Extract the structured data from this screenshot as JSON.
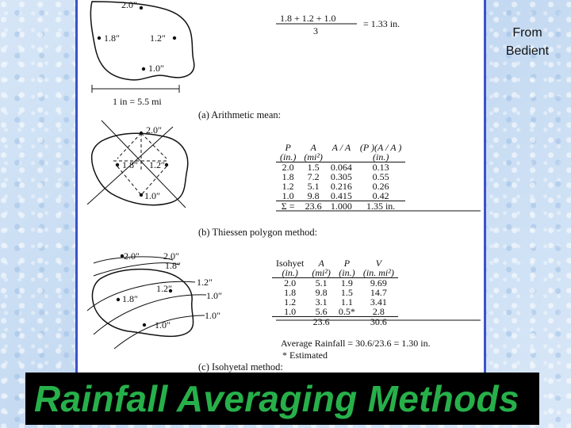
{
  "credit": [
    "From",
    "Bedient"
  ],
  "banner_title": "Rainfall Averaging Methods",
  "figure": {
    "arithmetic": {
      "gauges": [
        "2.0″",
        "1.8″",
        "1.2″",
        "1.0″"
      ],
      "formula_numerator": "1.8 + 1.2 + 1.0",
      "formula_denominator": "3",
      "formula_result": "= 1.33 in.",
      "scale": "1 in = 5.5 mi",
      "caption": "(a) Arithmetic mean:"
    },
    "thiessen": {
      "gauges": [
        "2.0″",
        "1.8″",
        "1.2″",
        "1.0″"
      ],
      "caption": "(b) Thiessen polygon method:",
      "header": [
        "P",
        "A",
        "A / A",
        "(P )(A / A )"
      ],
      "units": [
        "(in.)",
        "(mi²)",
        "",
        "(in.)"
      ],
      "rows": [
        [
          "2.0",
          "1.5",
          "0.064",
          "0.13"
        ],
        [
          "1.8",
          "7.2",
          "0.305",
          "0.55"
        ],
        [
          "1.2",
          "5.1",
          "0.216",
          "0.26"
        ],
        [
          "1.0",
          "9.8",
          "0.415",
          "0.42"
        ]
      ],
      "total": [
        "Σ =",
        "23.6",
        "1.000",
        "1.35 in."
      ]
    },
    "isohyetal": {
      "gauges": [
        "2.0″",
        "1.8″",
        "1.2″",
        "1.0″"
      ],
      "isohyets": [
        "2.0″",
        "1.8″",
        "1.2″",
        "1.0″",
        "1.0″"
      ],
      "caption": "(c) Isohyetal method:",
      "header": [
        "Isohyet",
        "A",
        "P",
        "V"
      ],
      "units": [
        "(in.)",
        "(mi²)",
        "(in.)",
        "(in.  mi²)"
      ],
      "rows": [
        [
          "2.0",
          "5.1",
          "1.9",
          "9.69"
        ],
        [
          "1.8",
          "9.8",
          "1.5",
          "14.7"
        ],
        [
          "1.2",
          "3.1",
          "1.1",
          "3.41"
        ],
        [
          "1.0",
          "5.6",
          "0.5*",
          "2.8"
        ]
      ],
      "total": [
        "",
        "23.6",
        "",
        "30.6"
      ],
      "average": "Average Rainfall = 30.6/23.6 = 1.30 in.",
      "note": "* Estimated"
    }
  }
}
